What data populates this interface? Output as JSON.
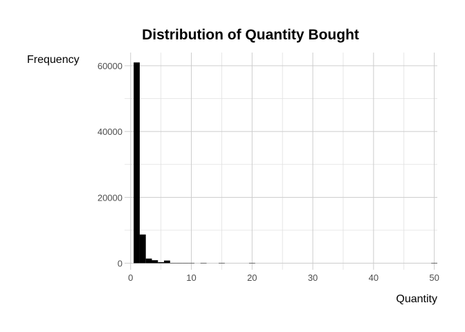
{
  "chart_data": {
    "type": "bar",
    "title": "Distribution of Quantity Bought",
    "xlabel": "Quantity",
    "ylabel": "Frequency",
    "bin_width": 1,
    "x_ticks": [
      0,
      10,
      20,
      30,
      40,
      50
    ],
    "y_ticks": [
      0,
      20000,
      40000,
      60000
    ],
    "xlim": [
      -1,
      50.5
    ],
    "ylim": [
      -2000,
      64000
    ],
    "grid": true,
    "legend": "none",
    "bins": [
      {
        "x": 1,
        "count": 61000
      },
      {
        "x": 2,
        "count": 8700
      },
      {
        "x": 3,
        "count": 1400
      },
      {
        "x": 4,
        "count": 900
      },
      {
        "x": 5,
        "count": 300
      },
      {
        "x": 6,
        "count": 800
      },
      {
        "x": 7,
        "count": 80
      },
      {
        "x": 8,
        "count": 40
      },
      {
        "x": 9,
        "count": 20
      },
      {
        "x": 10,
        "count": 15
      },
      {
        "x": 12,
        "count": 10
      },
      {
        "x": 15,
        "count": 5
      },
      {
        "x": 20,
        "count": 3
      },
      {
        "x": 50,
        "count": 1
      }
    ],
    "colors": {
      "bar": "#000000",
      "grid": "#cccccc",
      "background": "#ffffff"
    }
  }
}
